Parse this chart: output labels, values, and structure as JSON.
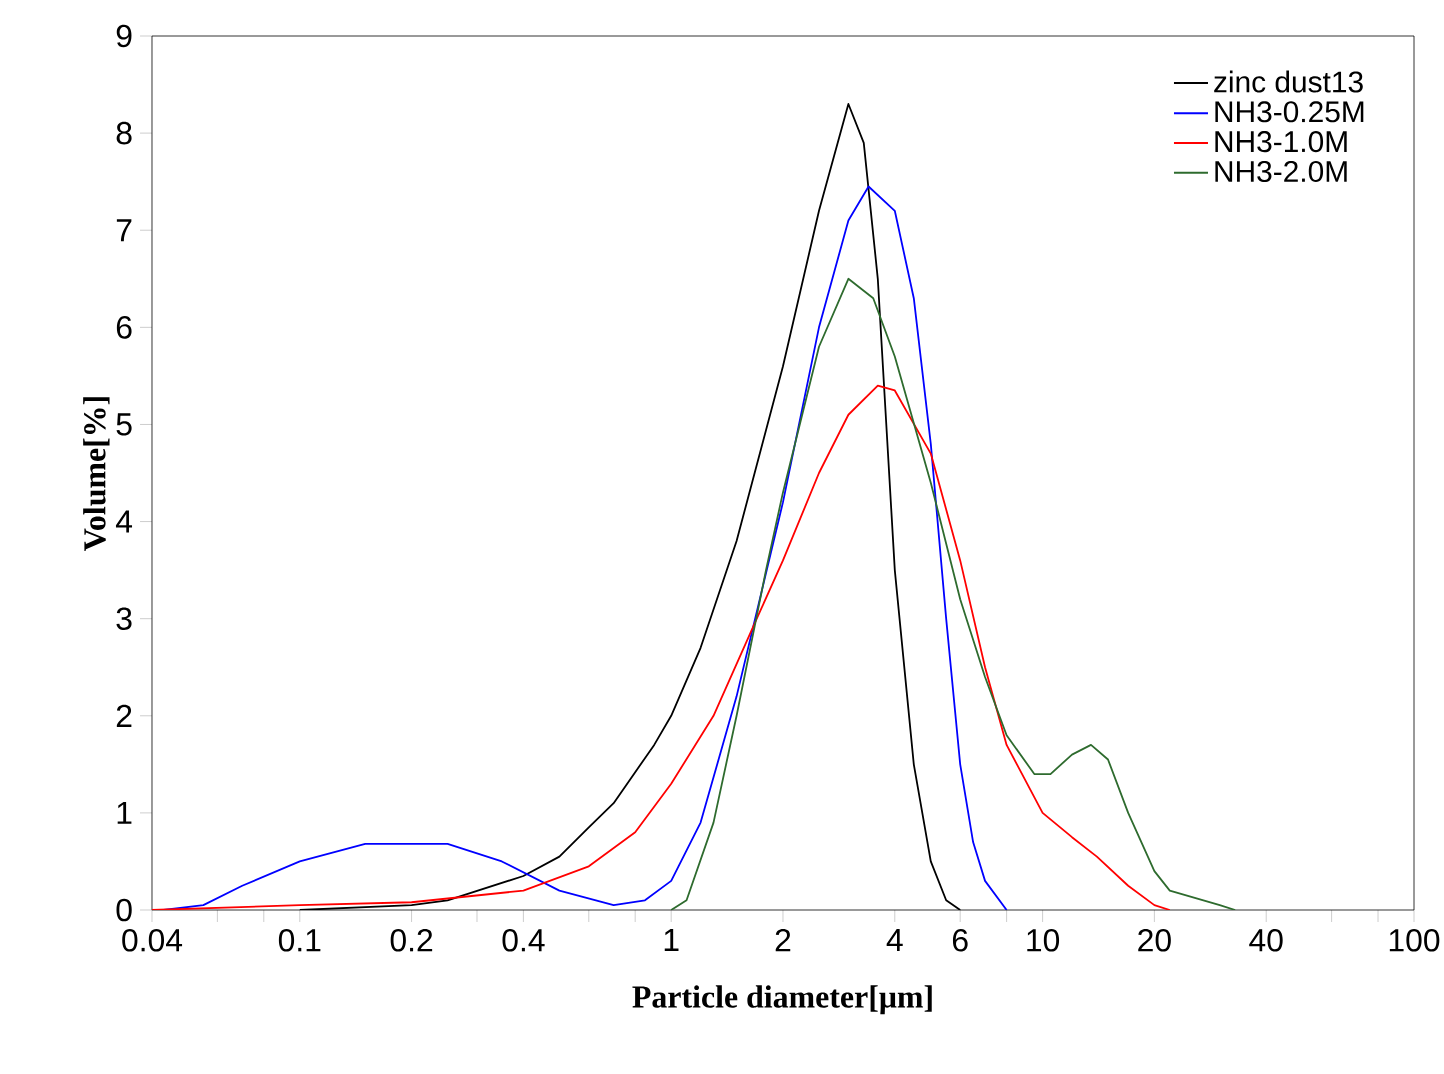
{
  "chart_data": {
    "type": "line",
    "xlabel": "Particle diameter[μm]",
    "ylabel": "Volume[%]",
    "log": "x",
    "legend": "top right",
    "grid": false,
    "xlim": [
      0.04,
      100
    ],
    "ylim": [
      0,
      9
    ],
    "xticks": [
      0.04,
      {
        "value": 0.06,
        "label": null
      },
      {
        "value": 0.08,
        "label": null
      },
      0.1,
      0.2,
      {
        "value": 0.3,
        "label": null
      },
      0.4,
      {
        "value": 0.6,
        "label": null
      },
      {
        "value": 0.8,
        "label": null
      },
      1,
      2,
      4,
      6,
      {
        "value": 8,
        "label": null
      },
      10,
      20,
      40,
      {
        "value": 60,
        "label": null
      },
      {
        "value": 80,
        "label": null
      },
      100
    ],
    "yticks": [
      0,
      1,
      2,
      3,
      4,
      5,
      6,
      7,
      8,
      9
    ],
    "series": [
      {
        "name": "zinc dust13",
        "color": "#000000",
        "x": [
          0.1,
          0.2,
          0.25,
          0.4,
          0.5,
          0.6,
          0.7,
          0.9,
          1.0,
          1.2,
          1.5,
          2,
          2.5,
          3.0,
          3.3,
          3.6,
          4.0,
          4.5,
          5,
          5.5,
          6
        ],
        "values": [
          0,
          0.05,
          0.1,
          0.35,
          0.55,
          0.85,
          1.1,
          1.7,
          2.0,
          2.7,
          3.8,
          5.6,
          7.2,
          8.3,
          7.9,
          6.5,
          3.5,
          1.5,
          0.5,
          0.1,
          0
        ]
      },
      {
        "name": "NH3-0.25M",
        "color": "#0000ff",
        "x": [
          0.043,
          0.055,
          0.07,
          0.1,
          0.15,
          0.25,
          0.35,
          0.5,
          0.7,
          0.85,
          1.0,
          1.2,
          1.5,
          2,
          2.5,
          3,
          3.4,
          4,
          4.5,
          5,
          5.5,
          6,
          6.5,
          7,
          8
        ],
        "values": [
          0,
          0.05,
          0.25,
          0.5,
          0.68,
          0.68,
          0.5,
          0.2,
          0.05,
          0.1,
          0.3,
          0.9,
          2.2,
          4.2,
          6.0,
          7.1,
          7.45,
          7.2,
          6.3,
          4.8,
          3.0,
          1.5,
          0.7,
          0.3,
          0
        ]
      },
      {
        "name": "NH3-1.0M",
        "color": "#ff0000",
        "x": [
          0.04,
          0.1,
          0.2,
          0.4,
          0.6,
          0.8,
          1.0,
          1.3,
          1.7,
          2,
          2.5,
          3,
          3.6,
          4,
          5,
          6,
          7,
          8,
          10,
          12,
          14,
          17,
          20,
          22
        ],
        "values": [
          0,
          0.05,
          0.08,
          0.2,
          0.45,
          0.8,
          1.3,
          2.0,
          3.0,
          3.6,
          4.5,
          5.1,
          5.4,
          5.35,
          4.7,
          3.6,
          2.5,
          1.7,
          1.0,
          0.75,
          0.55,
          0.25,
          0.05,
          0
        ]
      },
      {
        "name": "NH3-2.0M",
        "color": "#2e6b2e",
        "x": [
          1.0,
          1.1,
          1.3,
          1.5,
          1.8,
          2,
          2.5,
          3,
          3.5,
          4,
          5,
          6,
          7,
          8,
          9.5,
          10.5,
          12,
          13.5,
          15,
          17,
          20,
          22,
          30,
          33
        ],
        "values": [
          0,
          0.1,
          0.9,
          2.0,
          3.5,
          4.3,
          5.8,
          6.5,
          6.3,
          5.7,
          4.4,
          3.2,
          2.4,
          1.8,
          1.4,
          1.4,
          1.6,
          1.7,
          1.55,
          1.0,
          0.4,
          0.2,
          0.05,
          0
        ]
      }
    ]
  }
}
